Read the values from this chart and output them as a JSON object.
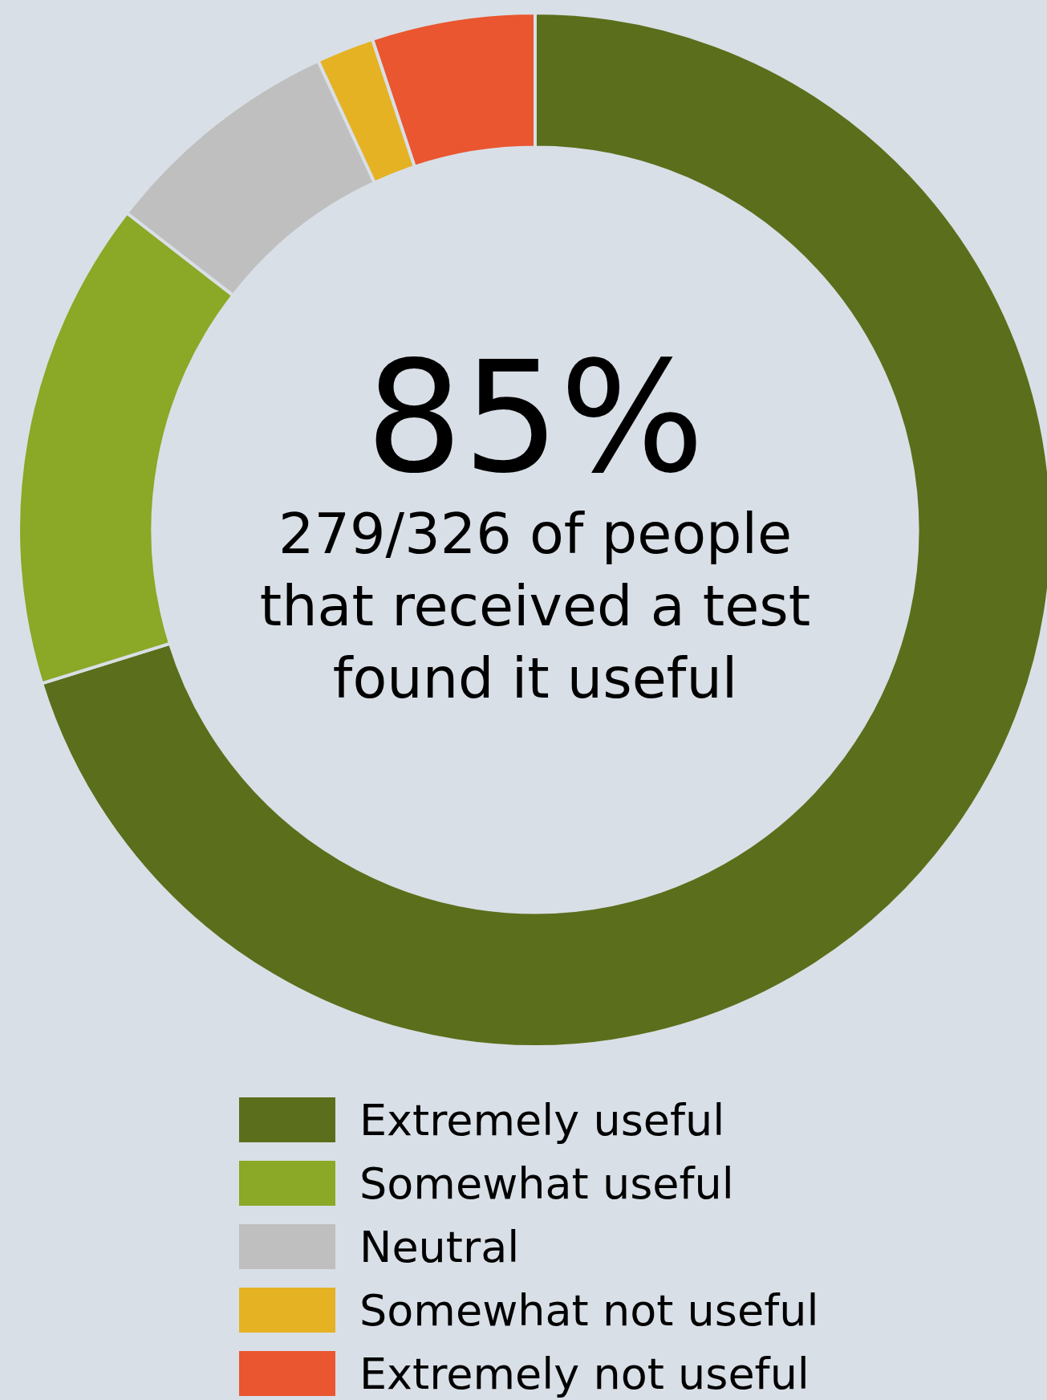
{
  "chart_data": {
    "type": "donut",
    "categories": [
      "Extremely useful",
      "Somewhat useful",
      "Neutral",
      "Somewhat not useful",
      "Extremely not useful"
    ],
    "values": [
      70.2,
      15.3,
      7.6,
      1.8,
      5.1
    ],
    "colors": [
      "#5b6e1b",
      "#8ba826",
      "#bfbfbf",
      "#e5b224",
      "#e9562f"
    ],
    "annotations": [
      "85%",
      "279/326 of people\nthat received a test\nfound it useful"
    ],
    "legend": "bottom"
  }
}
